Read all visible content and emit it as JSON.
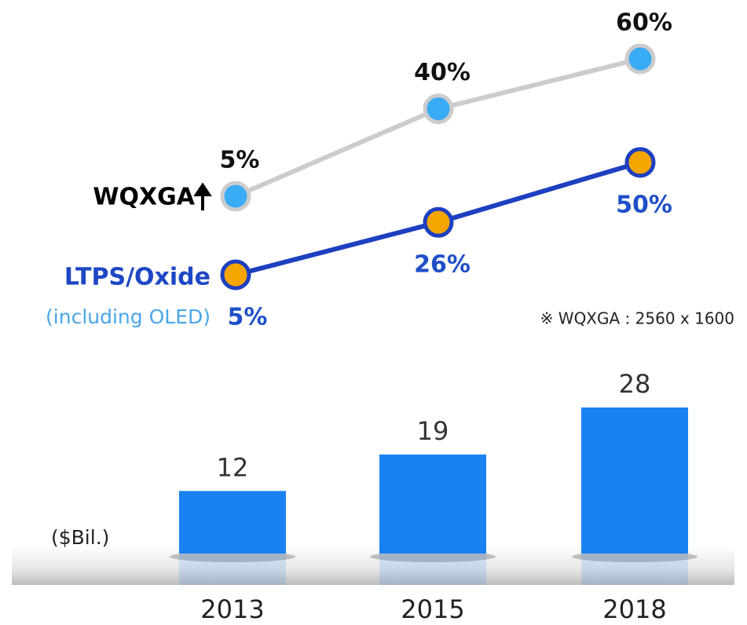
{
  "chart_data": [
    {
      "type": "line",
      "categories": [
        "2013",
        "2015",
        "2018"
      ],
      "series": [
        {
          "name": "WQXGA",
          "color": "#3aabf5",
          "line_color": "#cccccc",
          "values": [
            5,
            40,
            60
          ],
          "value_labels": [
            "5%",
            "40%",
            "60%"
          ]
        },
        {
          "name": "LTPS/Oxide",
          "note": "(including OLED)",
          "color": "#f5a500",
          "line_color": "#1d3fc0",
          "values": [
            5,
            26,
            50
          ],
          "value_labels": [
            "5%",
            "26%",
            "50%"
          ]
        }
      ],
      "annotation": "※ WQXGA : 2560 x 1600"
    },
    {
      "type": "bar",
      "categories": [
        "2013",
        "2015",
        "2018"
      ],
      "values": [
        12,
        19,
        28
      ],
      "color": "#1a82f0",
      "y_label": "($Bil.)"
    }
  ]
}
